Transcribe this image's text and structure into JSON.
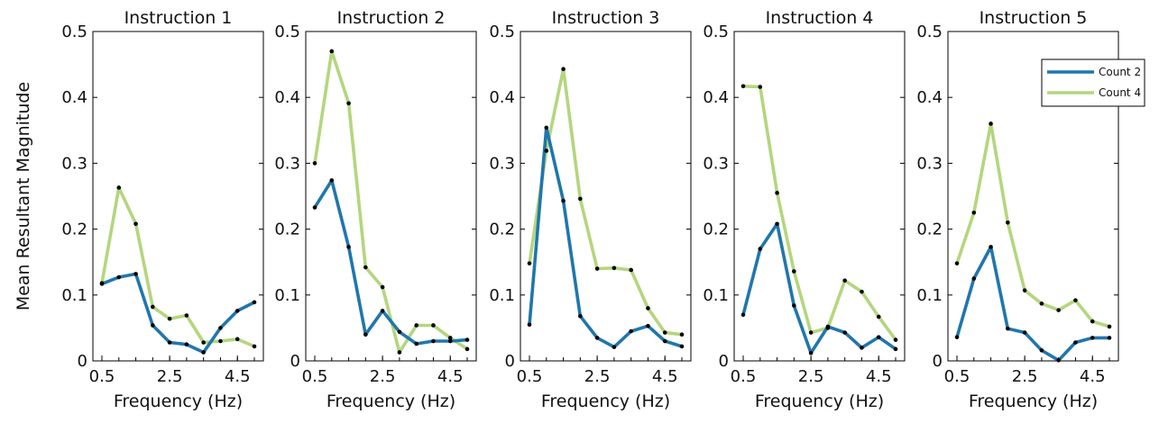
{
  "chart_data": {
    "type": "line",
    "ylabel": "Mean Resultant Magnitude",
    "xlabel": "Frequency (Hz)",
    "ylim": [
      0,
      0.5
    ],
    "yticks": [
      0,
      0.1,
      0.2,
      0.3,
      0.4,
      0.5
    ],
    "ytick_labels": [
      "0",
      "0.1",
      "0.2",
      "0.3",
      "0.4",
      "0.5"
    ],
    "xlim": [
      0.5,
      5.0
    ],
    "xticks": [
      0.5,
      2.5,
      4.5
    ],
    "xtick_labels": [
      "0.5",
      "2.5",
      "4.5"
    ],
    "x": [
      0.5,
      1.0,
      1.5,
      2.0,
      2.5,
      3.0,
      3.5,
      4.0,
      4.5,
      5.0
    ],
    "series_colors": {
      "Count 2": "#2076ad",
      "Count 4": "#b4d67d"
    },
    "legend": {
      "entries": [
        "Count 2",
        "Count 4"
      ],
      "placement": "top-right of last panel"
    },
    "panels": [
      {
        "title": "Instruction 1",
        "series": [
          {
            "name": "Count 2",
            "values": [
              0.117,
              0.127,
              0.132,
              0.054,
              0.028,
              0.025,
              0.013,
              0.05,
              0.076,
              0.089
            ]
          },
          {
            "name": "Count 4",
            "values": [
              0.118,
              0.263,
              0.208,
              0.082,
              0.064,
              0.069,
              0.028,
              0.03,
              0.033,
              0.022
            ]
          }
        ]
      },
      {
        "title": "Instruction 2",
        "series": [
          {
            "name": "Count 2",
            "values": [
              0.233,
              0.274,
              0.173,
              0.04,
              0.076,
              0.044,
              0.026,
              0.03,
              0.03,
              0.032
            ]
          },
          {
            "name": "Count 4",
            "values": [
              0.3,
              0.47,
              0.391,
              0.142,
              0.112,
              0.013,
              0.054,
              0.054,
              0.035,
              0.018
            ]
          }
        ]
      },
      {
        "title": "Instruction 3",
        "series": [
          {
            "name": "Count 2",
            "values": [
              0.055,
              0.354,
              0.243,
              0.068,
              0.035,
              0.021,
              0.045,
              0.053,
              0.03,
              0.022
            ]
          },
          {
            "name": "Count 4",
            "values": [
              0.148,
              0.319,
              0.443,
              0.246,
              0.14,
              0.141,
              0.138,
              0.08,
              0.043,
              0.04
            ]
          }
        ]
      },
      {
        "title": "Instruction 4",
        "series": [
          {
            "name": "Count 2",
            "values": [
              0.07,
              0.17,
              0.208,
              0.084,
              0.012,
              0.052,
              0.043,
              0.02,
              0.036,
              0.018
            ]
          },
          {
            "name": "Count 4",
            "values": [
              0.417,
              0.416,
              0.255,
              0.136,
              0.043,
              0.05,
              0.122,
              0.105,
              0.067,
              0.032
            ]
          }
        ]
      },
      {
        "title": "Instruction 5",
        "series": [
          {
            "name": "Count 2",
            "values": [
              0.036,
              0.125,
              0.173,
              0.049,
              0.043,
              0.016,
              0.001,
              0.028,
              0.035,
              0.035
            ]
          },
          {
            "name": "Count 4",
            "values": [
              0.148,
              0.225,
              0.36,
              0.21,
              0.107,
              0.087,
              0.077,
              0.092,
              0.06,
              0.052
            ]
          }
        ]
      }
    ]
  }
}
